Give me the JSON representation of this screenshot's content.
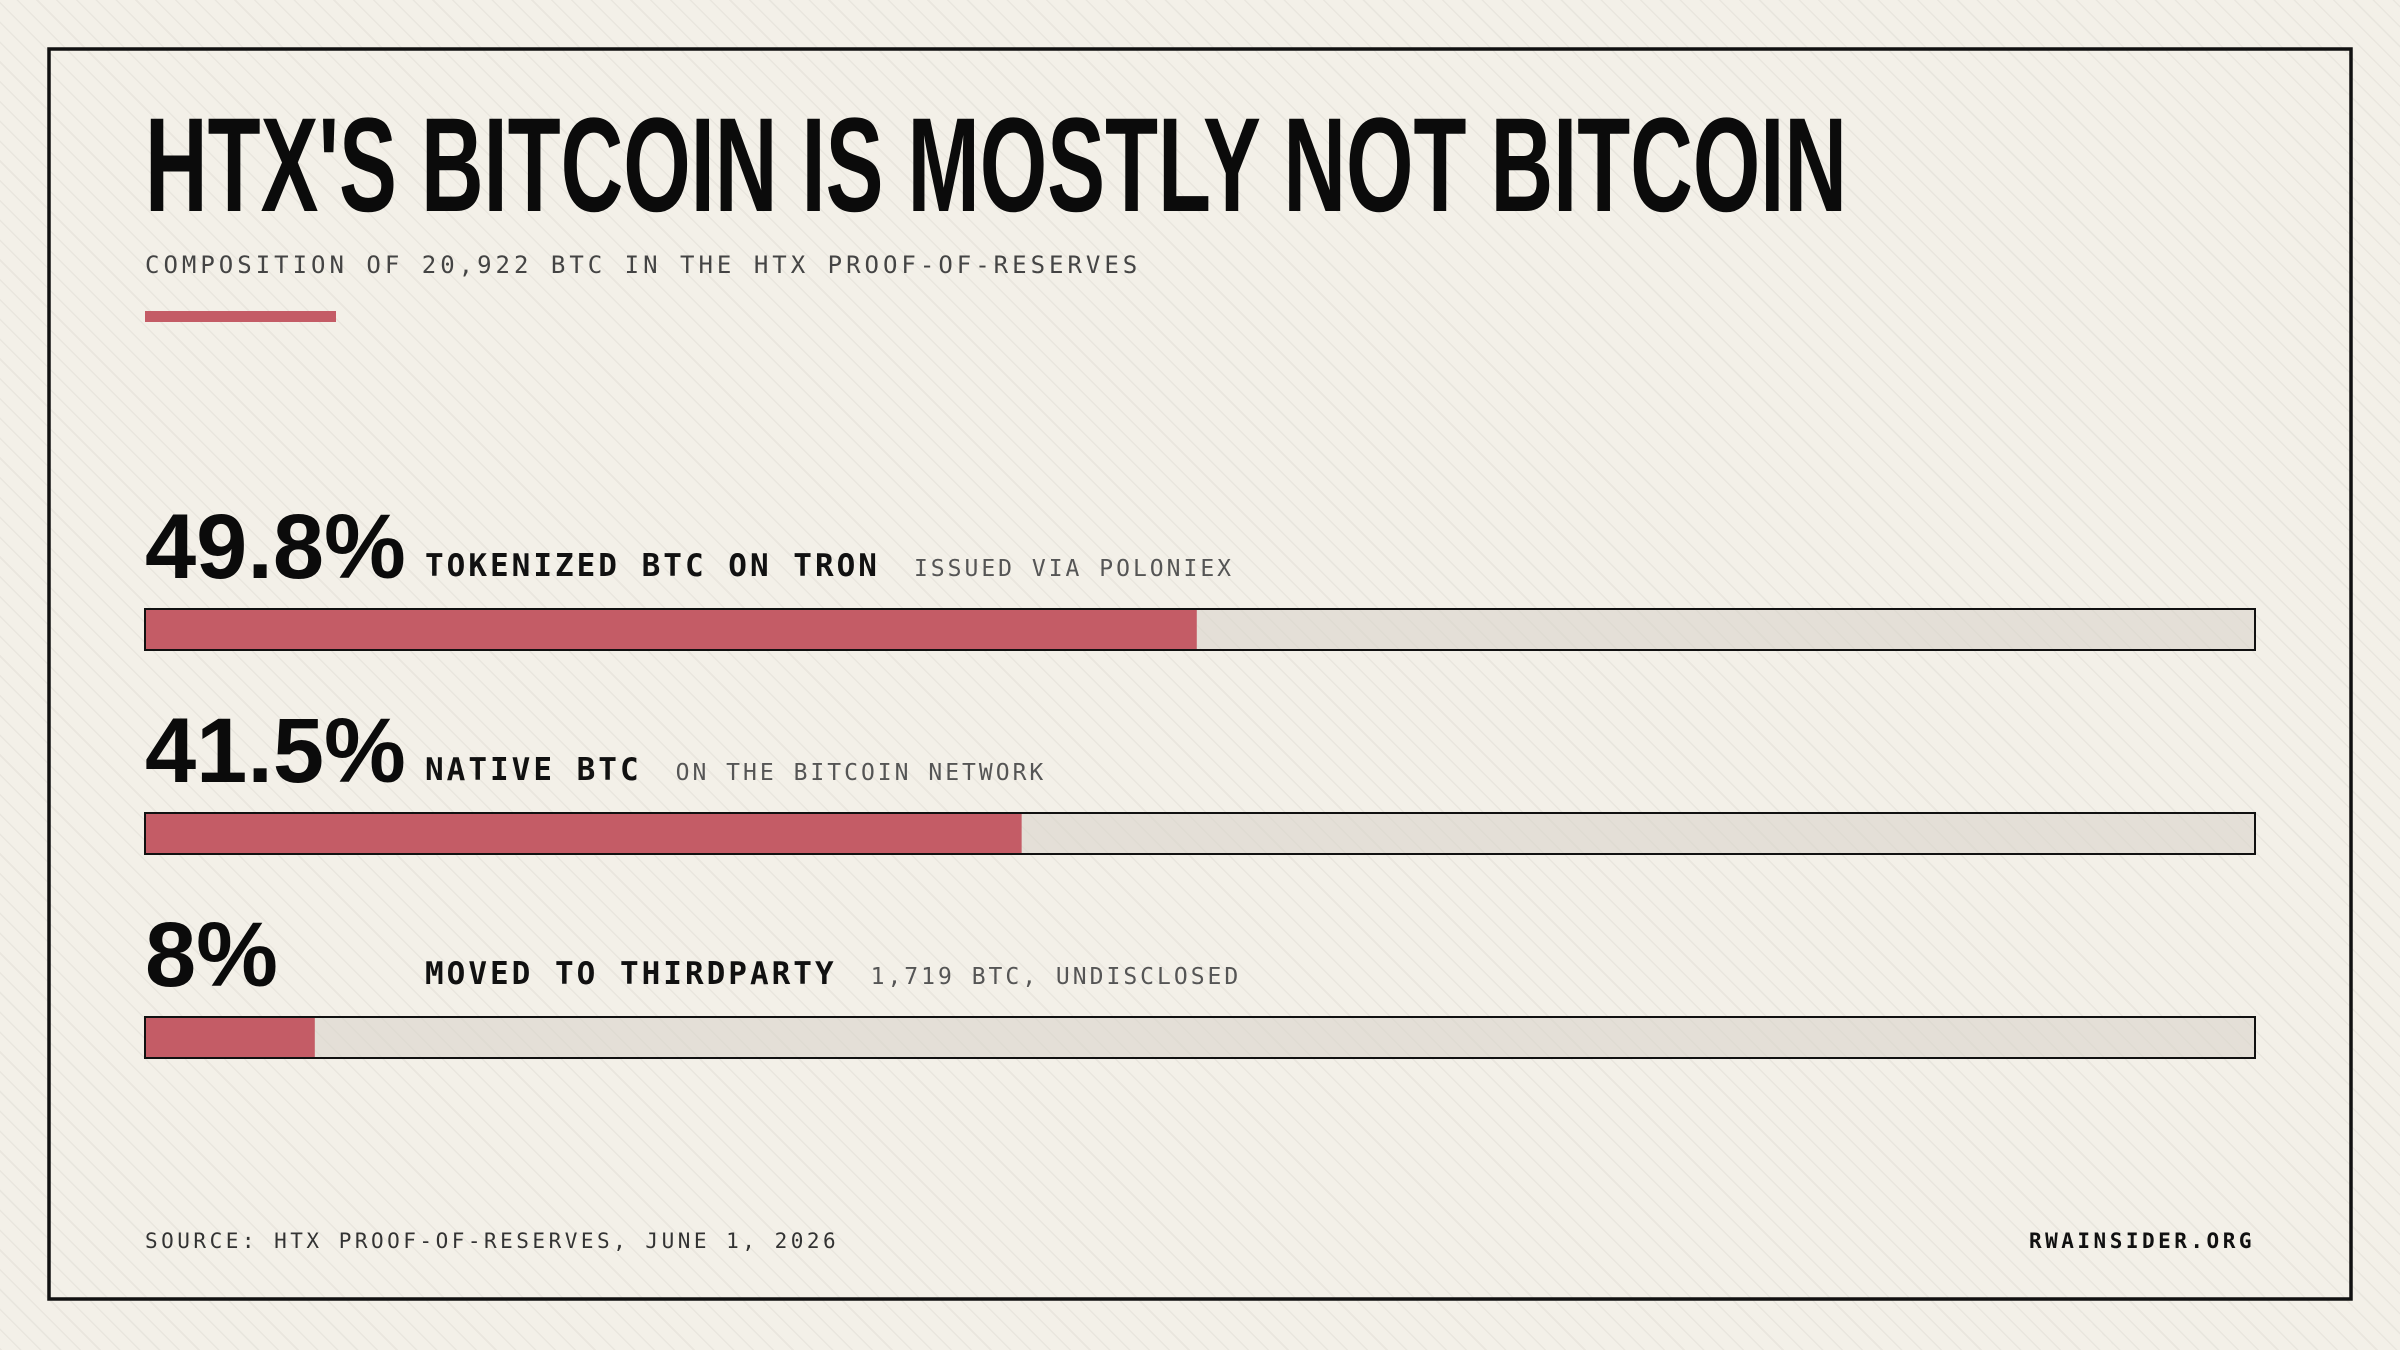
{
  "chart_data": {
    "type": "bar",
    "title": "HTX'S BITCOIN IS MOSTLY NOT BITCOIN",
    "subtitle": "COMPOSITION OF 20,922 BTC IN THE HTX PROOF-OF-RESERVES",
    "categories": [
      "TOKENIZED BTC ON TRON",
      "NATIVE BTC",
      "MOVED TO THIRDPARTY"
    ],
    "details": [
      "ISSUED VIA POLONIEX",
      "ON THE BITCOIN NETWORK",
      "1,719 BTC, UNDISCLOSED"
    ],
    "values": [
      49.8,
      41.5,
      8
    ],
    "value_labels": [
      "49.8%",
      "41.5%",
      "8%"
    ],
    "xlim": [
      0,
      100
    ],
    "color": "#c45c66",
    "source": "SOURCE: HTX PROOF-OF-RESERVES, JUNE 1, 2026",
    "credit": "RWAINSIDER.ORG"
  }
}
